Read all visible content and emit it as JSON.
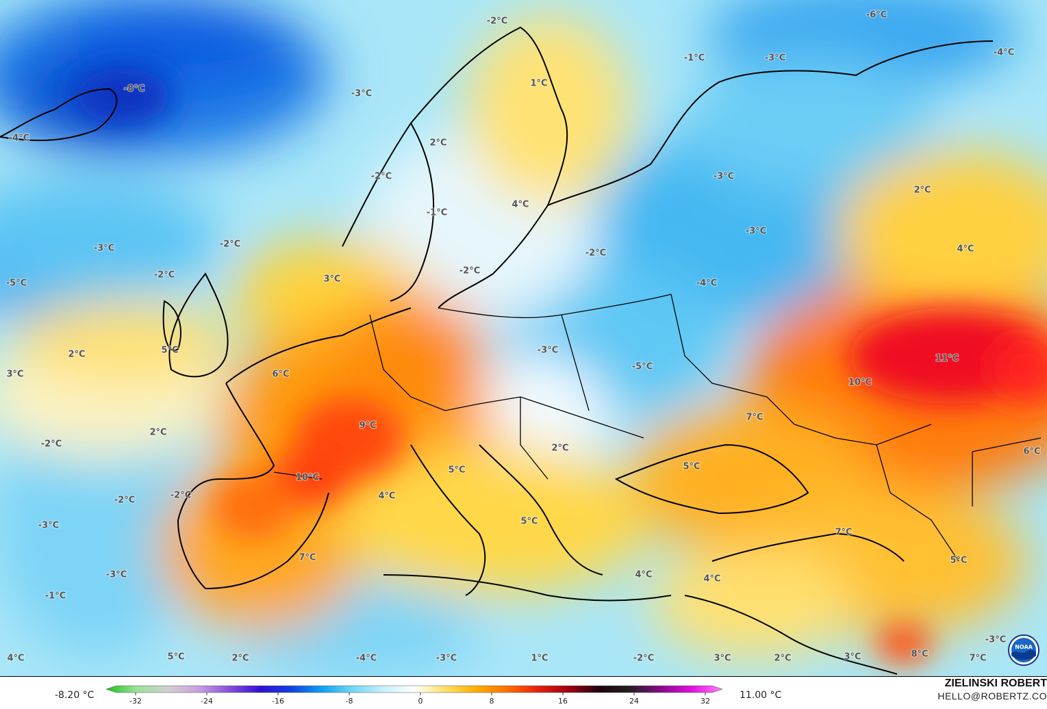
{
  "map": {
    "labels": [
      {
        "text": "-2°C"
      },
      {
        "text": "-6°C"
      },
      {
        "text": "-1°C"
      },
      {
        "text": "-3°C"
      },
      {
        "text": "-4°C"
      },
      {
        "text": "-8°C"
      },
      {
        "text": "-3°C"
      },
      {
        "text": "1°C"
      },
      {
        "text": "-4°C"
      },
      {
        "text": "2°C"
      },
      {
        "text": "-2°C"
      },
      {
        "text": "-3°C"
      },
      {
        "text": "2°C"
      },
      {
        "text": "4°C"
      },
      {
        "text": "-1°C"
      },
      {
        "text": "-3°C"
      },
      {
        "text": "-2°C"
      },
      {
        "text": "-3°C"
      },
      {
        "text": "-2°C"
      },
      {
        "text": "4°C"
      },
      {
        "text": "-5°C"
      },
      {
        "text": "-2°C"
      },
      {
        "text": "3°C"
      },
      {
        "text": "-2°C"
      },
      {
        "text": "-4°C"
      },
      {
        "text": "2°C"
      },
      {
        "text": "5°C"
      },
      {
        "text": "-3°C"
      },
      {
        "text": "11°C"
      },
      {
        "text": "3°C"
      },
      {
        "text": "6°C"
      },
      {
        "text": "-5°C"
      },
      {
        "text": "10°C"
      },
      {
        "text": "9°C"
      },
      {
        "text": "7°C"
      },
      {
        "text": "2°C"
      },
      {
        "text": "-2°C"
      },
      {
        "text": "2°C"
      },
      {
        "text": "5°C"
      },
      {
        "text": "5°C"
      },
      {
        "text": "6°C"
      },
      {
        "text": "10°C"
      },
      {
        "text": "-2°C"
      },
      {
        "text": "4°C"
      },
      {
        "text": "-2°C"
      },
      {
        "text": "-3°C"
      },
      {
        "text": "5°C"
      },
      {
        "text": "7°C"
      },
      {
        "text": "7°C"
      },
      {
        "text": "-3°C"
      },
      {
        "text": "4°C"
      },
      {
        "text": "4°C"
      },
      {
        "text": "5°C"
      },
      {
        "text": "-1°C"
      },
      {
        "text": "4°C"
      },
      {
        "text": "5°C"
      },
      {
        "text": "2°C"
      },
      {
        "text": "-4°C"
      },
      {
        "text": "-3°C"
      },
      {
        "text": "1°C"
      },
      {
        "text": "-2°C"
      },
      {
        "text": "3°C"
      },
      {
        "text": "2°C"
      },
      {
        "text": "3°C"
      },
      {
        "text": "8°C"
      },
      {
        "text": "7°C"
      },
      {
        "text": "-3°C"
      }
    ]
  },
  "legend": {
    "min_label": "-8.20 °C",
    "max_label": "11.00 °C",
    "ticks": [
      "-32",
      "-24",
      "-16",
      "-8",
      "0",
      "8",
      "16",
      "24",
      "32"
    ],
    "range": [
      -32,
      32
    ],
    "colors": [
      "#1fc01f",
      "#9be29b",
      "#d0d0d0",
      "#c8a0e0",
      "#8a4fd8",
      "#3010d0",
      "#1040e0",
      "#10a0f0",
      "#70d8f8",
      "#c8f0fc",
      "#ffffff",
      "#ffe066",
      "#ffb000",
      "#ff7000",
      "#e82010",
      "#a00010",
      "#200010",
      "#202020",
      "#8a0a8a",
      "#e010e0",
      "#ff80ff"
    ]
  },
  "credits": {
    "author": "ZIELINSKI ROBERT",
    "email": "HELLO@ROBERTZ.CO",
    "logo_text": "NOAA"
  }
}
